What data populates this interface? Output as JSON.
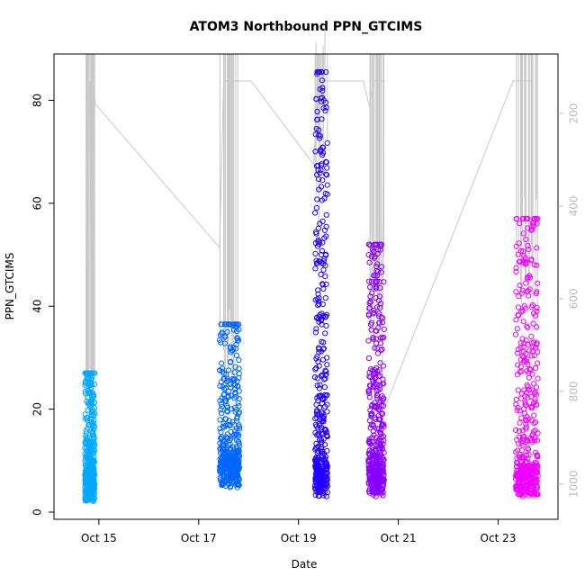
{
  "chart_data": {
    "type": "scatter",
    "title": "ATOM3 Northbound PPN_GTCIMS",
    "xlabel": "Date",
    "ylabel": "PPN_GTCIMS",
    "x_ticks": [
      "Oct 15",
      "Oct 17",
      "Oct 19",
      "Oct 21",
      "Oct 23"
    ],
    "x_tick_days": [
      15,
      17,
      19,
      21,
      23
    ],
    "xlim_days": [
      14.1,
      24.2
    ],
    "ylim": [
      0,
      89
    ],
    "y_ticks": [
      0,
      20,
      40,
      60,
      80
    ],
    "y2_ticks": [
      200,
      400,
      600,
      800,
      1000
    ],
    "y2_ticks_color": "#bbbbbb",
    "y2_range_top_to_bottom": [
      130,
      1020
    ],
    "overlay_line_color": "#c8c8c8",
    "grid": false,
    "legend": "none",
    "clusters": [
      {
        "day_start": 14.72,
        "day_end": 14.92,
        "y_min": 2.0,
        "y_max": 27.0,
        "y_spike": 27.0,
        "color": "#00a8ff"
      },
      {
        "day_start": 17.42,
        "day_end": 17.82,
        "y_min": 4.5,
        "y_max": 36.5,
        "y_spike": 36.5,
        "color": "#0066ff"
      },
      {
        "day_start": 19.33,
        "day_end": 19.58,
        "y_min": 3.0,
        "y_max": 85.5,
        "y_spike": 85.5,
        "color": "#2200ff"
      },
      {
        "day_start": 20.4,
        "day_end": 20.72,
        "y_min": 3.0,
        "y_max": 52.0,
        "y_spike": 52.0,
        "color": "#8800ff"
      },
      {
        "day_start": 23.35,
        "day_end": 23.8,
        "y_min": 3.0,
        "y_max": 57.0,
        "y_spike": 57.0,
        "color": "#ee00ff"
      }
    ],
    "overlay_path_y2": [
      [
        14.82,
        130
      ],
      [
        14.85,
        770
      ],
      [
        14.88,
        130
      ],
      [
        14.93,
        180
      ],
      [
        17.42,
        490
      ],
      [
        17.5,
        130
      ],
      [
        17.6,
        130
      ],
      [
        18.05,
        130
      ],
      [
        19.3,
        310
      ],
      [
        19.4,
        130
      ],
      [
        19.5,
        130
      ],
      [
        20.3,
        130
      ],
      [
        20.42,
        185
      ],
      [
        20.5,
        130
      ],
      [
        20.7,
        130
      ],
      [
        20.68,
        850
      ],
      [
        23.3,
        130
      ],
      [
        23.4,
        130
      ],
      [
        23.7,
        130
      ]
    ]
  }
}
